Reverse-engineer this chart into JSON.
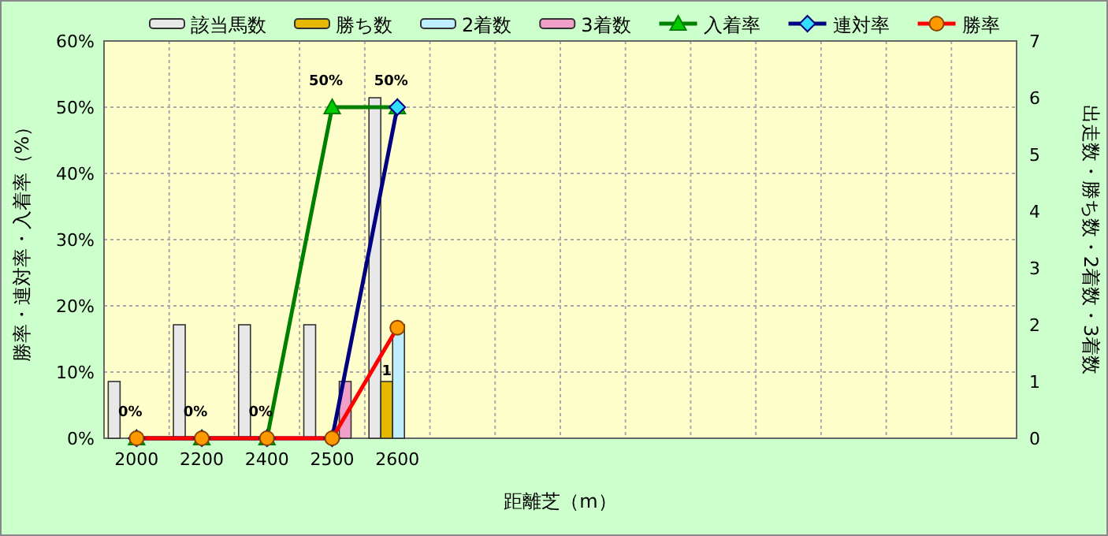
{
  "chart_data": {
    "type": "bar",
    "xlabel": "距離芝（m）",
    "ylabel": "勝率・連対率・入着率（%）",
    "y2label": "出走数・勝ち数・2着数・3着数",
    "categories": [
      "2000",
      "2200",
      "2400",
      "2500",
      "2600",
      null,
      null,
      null,
      null,
      null,
      null,
      null,
      null,
      null
    ],
    "ylim": [
      0,
      60
    ],
    "yticks": [
      {
        "value": 0,
        "label": "0%"
      },
      {
        "value": 10,
        "label": "10%"
      },
      {
        "value": 20,
        "label": "20%"
      },
      {
        "value": 30,
        "label": "30%"
      },
      {
        "value": 40,
        "label": "40%"
      },
      {
        "value": 50,
        "label": "50%"
      },
      {
        "value": 60,
        "label": "60%"
      }
    ],
    "y2lim": [
      0,
      7
    ],
    "y2ticks": [
      0,
      1,
      2,
      3,
      4,
      5,
      6,
      7
    ],
    "grid": true,
    "legend": "top",
    "series": [
      {
        "name": "該当馬数",
        "axis": "y2",
        "color": "#e8e8e8",
        "values": [
          1,
          2,
          2,
          2,
          6,
          null,
          null,
          null,
          null,
          null,
          null,
          null,
          null,
          null
        ]
      },
      {
        "name": "勝ち数",
        "axis": "y2",
        "color": "#e6b800",
        "values": [
          0,
          0,
          0,
          0,
          1,
          null,
          null,
          null,
          null,
          null,
          null,
          null,
          null,
          null
        ],
        "value_labels": [
          null,
          null,
          null,
          null,
          "1",
          null,
          null,
          null,
          null,
          null,
          null,
          null,
          null,
          null
        ]
      },
      {
        "name": "2着数",
        "axis": "y2",
        "color": "#bfeeff",
        "values": [
          0,
          0,
          0,
          0,
          2,
          null,
          null,
          null,
          null,
          null,
          null,
          null,
          null,
          null
        ]
      },
      {
        "name": "3着数",
        "axis": "y2",
        "color": "#f0a0c8",
        "values": [
          0,
          0,
          0,
          1,
          0,
          null,
          null,
          null,
          null,
          null,
          null,
          null,
          null,
          null
        ]
      },
      {
        "name": "入着率",
        "type": "line",
        "color": "#008000",
        "marker": "triangle",
        "values": [
          0,
          0,
          0,
          50,
          50,
          null,
          null,
          null,
          null,
          null,
          null,
          null,
          null,
          null
        ],
        "value_labels": [
          "0%",
          "0%",
          "0%",
          "50%",
          "50%",
          null,
          null,
          null,
          null,
          null,
          null,
          null,
          null,
          null
        ]
      },
      {
        "name": "連対率",
        "type": "line",
        "color": "#000080",
        "marker": "diamond",
        "values": [
          0,
          0,
          0,
          0,
          50,
          null,
          null,
          null,
          null,
          null,
          null,
          null,
          null,
          null
        ]
      },
      {
        "name": "勝率",
        "type": "line",
        "color": "#ff0000",
        "marker": "circle",
        "values": [
          0,
          0,
          0,
          0,
          16.7,
          null,
          null,
          null,
          null,
          null,
          null,
          null,
          null,
          null
        ]
      }
    ]
  }
}
